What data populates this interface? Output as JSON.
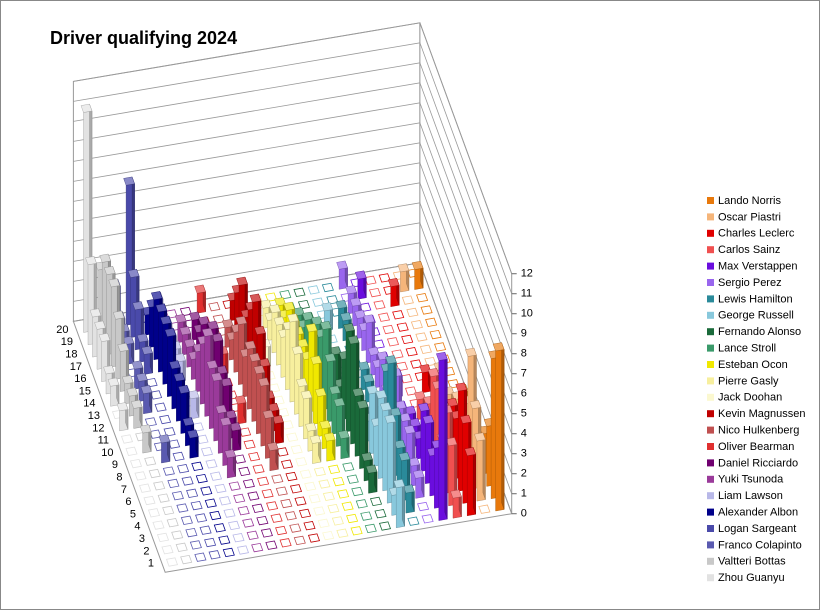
{
  "chart_data": {
    "type": "bar3d",
    "title": "Driver qualifying 2024",
    "categories": [
      "1",
      "2",
      "3",
      "4",
      "5",
      "6",
      "7",
      "8",
      "9",
      "10",
      "11",
      "12",
      "13",
      "14",
      "15",
      "16",
      "17",
      "18",
      "19",
      "20"
    ],
    "ylim": [
      0,
      12
    ],
    "yticks": [
      0,
      1,
      2,
      3,
      4,
      5,
      6,
      7,
      8,
      9,
      10,
      11,
      12
    ],
    "grid": true,
    "legend": "right",
    "series": [
      {
        "name": "Lando Norris",
        "color": "#e8790c",
        "values": [
          8,
          7,
          3,
          2,
          1,
          1,
          0,
          0,
          1,
          0,
          0,
          0,
          0,
          0,
          0,
          0,
          0,
          0,
          1,
          0
        ]
      },
      {
        "name": "Oscar Piastri",
        "color": "#f5b57a",
        "values": [
          0,
          3,
          4,
          6,
          3,
          2,
          2,
          1,
          1,
          0,
          1,
          0,
          0,
          0,
          0,
          0,
          0,
          0,
          1,
          0
        ]
      },
      {
        "name": "Charles Leclerc",
        "color": "#e00000",
        "values": [
          3,
          4,
          5,
          3,
          3,
          2,
          1,
          1,
          0,
          0,
          1,
          0,
          0,
          0,
          0,
          0,
          0,
          1,
          0,
          0
        ]
      },
      {
        "name": "Carlos Sainz",
        "color": "#f05050",
        "values": [
          1,
          3,
          4,
          2,
          4,
          4,
          2,
          1,
          1,
          0,
          0,
          0,
          0,
          0,
          0,
          0,
          0,
          0,
          0,
          0
        ]
      },
      {
        "name": "Max Verstappen",
        "color": "#6a0dde",
        "values": [
          8,
          3,
          2,
          3,
          3,
          1,
          1,
          1,
          0,
          0,
          1,
          0,
          0,
          0,
          0,
          0,
          0,
          0,
          1,
          0
        ]
      },
      {
        "name": "Sergio Perez",
        "color": "#9966ee",
        "values": [
          0,
          0,
          1,
          1,
          2,
          2,
          2,
          3,
          1,
          1,
          2,
          1,
          1,
          2,
          1,
          1,
          1,
          1,
          0,
          1
        ]
      },
      {
        "name": "Lewis Hamilton",
        "color": "#2a8a9a",
        "values": [
          0,
          1,
          2,
          2,
          3,
          5,
          4,
          2,
          1,
          0,
          1,
          1,
          0,
          0,
          0,
          1,
          1,
          0,
          0,
          0
        ]
      },
      {
        "name": "George Russell",
        "color": "#88c8dc",
        "values": [
          2,
          1,
          4,
          4,
          4,
          2,
          3,
          1,
          1,
          1,
          0,
          0,
          0,
          0,
          0,
          0,
          1,
          0,
          0,
          0
        ]
      },
      {
        "name": "Fernando Alonso",
        "color": "#1a6a3a",
        "values": [
          0,
          0,
          0,
          1,
          1,
          3,
          3,
          5,
          5,
          3,
          1,
          2,
          0,
          0,
          0,
          0,
          0,
          0,
          0,
          0
        ]
      },
      {
        "name": "Lance Stroll",
        "color": "#3a9a6a",
        "values": [
          0,
          0,
          0,
          0,
          0,
          0,
          1,
          2,
          2,
          3,
          4,
          3,
          3,
          2,
          2,
          1,
          1,
          0,
          0,
          0
        ]
      },
      {
        "name": "Esteban Ocon",
        "color": "#f0e800",
        "values": [
          0,
          0,
          0,
          0,
          0,
          0,
          1,
          1,
          2,
          3,
          4,
          2,
          2,
          2,
          2,
          2,
          1,
          1,
          0,
          0
        ]
      },
      {
        "name": "Pierre Gasly",
        "color": "#f7ef9e",
        "values": [
          0,
          0,
          0,
          0,
          0,
          0,
          1,
          1,
          2,
          2,
          3,
          4,
          3,
          2,
          2,
          2,
          1,
          1,
          0,
          0
        ]
      },
      {
        "name": "Jack Doohan",
        "color": "#fbf8d0",
        "values": [
          0,
          0,
          0,
          0,
          0,
          0,
          0,
          0,
          0,
          0,
          0,
          0,
          0,
          0,
          1,
          0,
          0,
          0,
          0,
          0
        ]
      },
      {
        "name": "Kevin Magnussen",
        "color": "#c00000",
        "values": [
          0,
          0,
          0,
          0,
          0,
          0,
          0,
          0,
          1,
          1,
          1,
          2,
          3,
          4,
          3,
          2,
          3,
          2,
          1,
          0
        ]
      },
      {
        "name": "Nico Hulkenberg",
        "color": "#c05050",
        "values": [
          0,
          0,
          0,
          0,
          0,
          0,
          1,
          2,
          3,
          3,
          3,
          3,
          2,
          3,
          2,
          1,
          1,
          0,
          0,
          0
        ]
      },
      {
        "name": "Oliver Bearman",
        "color": "#e03030",
        "values": [
          0,
          0,
          0,
          0,
          0,
          0,
          0,
          0,
          0,
          0,
          1,
          0,
          0,
          0,
          1,
          0,
          0,
          0,
          0,
          1
        ]
      },
      {
        "name": "Daniel Ricciardo",
        "color": "#700070",
        "values": [
          0,
          0,
          0,
          0,
          0,
          0,
          0,
          0,
          1,
          1,
          2,
          2,
          3,
          3,
          2,
          2,
          1,
          1,
          0,
          0
        ]
      },
      {
        "name": "Yuki Tsunoda",
        "color": "#9a3a9a",
        "values": [
          0,
          0,
          0,
          0,
          0,
          0,
          1,
          2,
          2,
          3,
          3,
          4,
          3,
          2,
          1,
          1,
          1,
          1,
          0,
          0
        ]
      },
      {
        "name": "Liam Lawson",
        "color": "#b8b8e8",
        "values": [
          0,
          0,
          0,
          0,
          0,
          0,
          0,
          0,
          0,
          0,
          0,
          1,
          0,
          0,
          1,
          1,
          1,
          1,
          0,
          1
        ]
      },
      {
        "name": "Alexander Albon",
        "color": "#00008a",
        "values": [
          0,
          0,
          0,
          0,
          0,
          0,
          0,
          0,
          1,
          1,
          2,
          2,
          2,
          3,
          3,
          3,
          3,
          2,
          1,
          0
        ]
      },
      {
        "name": "Logan Sargeant",
        "color": "#4a4aaa",
        "values": [
          0,
          0,
          0,
          0,
          0,
          0,
          0,
          0,
          0,
          0,
          0,
          0,
          0,
          0,
          0,
          1,
          1,
          2,
          3,
          7
        ]
      },
      {
        "name": "Franco Colapinto",
        "color": "#5a5ab0",
        "values": [
          0,
          0,
          0,
          0,
          0,
          0,
          0,
          0,
          1,
          0,
          0,
          0,
          1,
          1,
          1,
          0,
          1,
          1,
          1,
          2
        ]
      },
      {
        "name": "Valtteri Bottas",
        "color": "#c8c8c8",
        "values": [
          0,
          0,
          0,
          0,
          0,
          0,
          0,
          0,
          0,
          1,
          0,
          1,
          1,
          1,
          2,
          3,
          4,
          4,
          4,
          3
        ]
      },
      {
        "name": "Zhou Guanyu",
        "color": "#e2e2e2",
        "values": [
          0,
          0,
          0,
          0,
          0,
          0,
          0,
          0,
          0,
          0,
          0,
          1,
          0,
          1,
          1,
          2,
          2,
          2,
          4,
          11
        ]
      }
    ]
  }
}
